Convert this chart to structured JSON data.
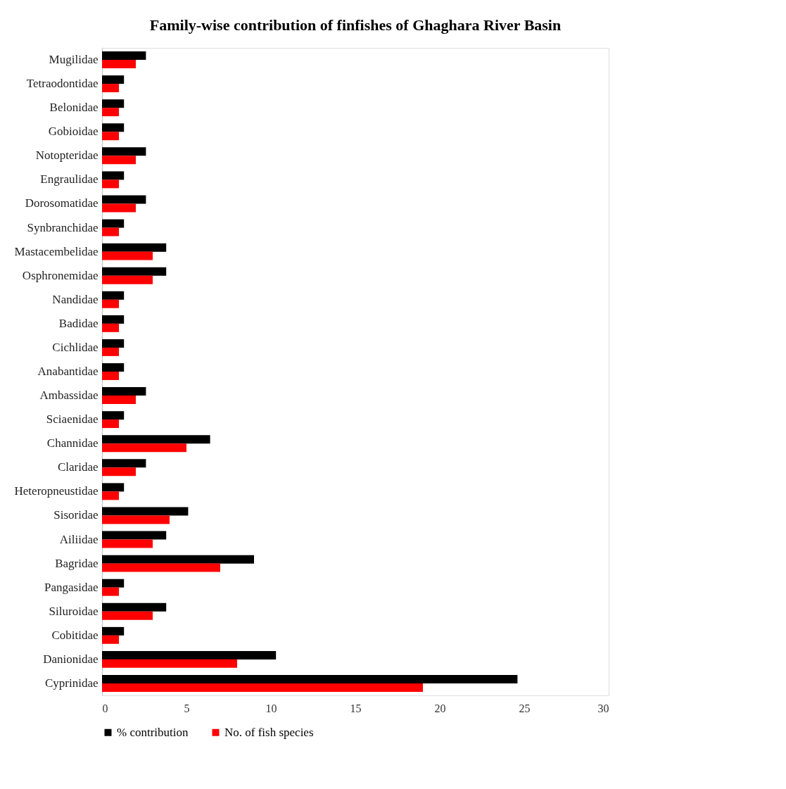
{
  "chart_data": {
    "type": "bar",
    "orientation": "horizontal",
    "title": "Family-wise contribution of finfishes of Ghaghara River Basin",
    "categories": [
      "Mugilidae",
      "Tetraodontidae",
      "Belonidae",
      "Gobioidae",
      "Notopteridae",
      "Engraulidae",
      "Dorosomatidae",
      "Synbranchidae",
      "Mastacembelidae",
      "Osphronemidae",
      "Nandidae",
      "Badidae",
      "Cichlidae",
      "Anabantidae",
      "Ambassidae",
      "Sciaenidae",
      "Channidae",
      "Claridae",
      "Heteropneustidae",
      "Sisoridae",
      "Ailiidae",
      "Bagridae",
      "Pangasidae",
      "Siluroidae",
      "Cobitidae",
      "Danionidae",
      "Cyprinidae"
    ],
    "series": [
      {
        "name": "% contribution",
        "color": "#000000",
        "values": [
          2.6,
          1.3,
          1.3,
          1.3,
          2.6,
          1.3,
          2.6,
          1.3,
          3.8,
          3.8,
          1.3,
          1.3,
          1.3,
          1.3,
          2.6,
          1.3,
          6.4,
          2.6,
          1.3,
          5.1,
          3.8,
          9.0,
          1.3,
          3.8,
          1.3,
          10.3,
          24.6
        ]
      },
      {
        "name": "No. of fish species",
        "color": "#ff0000",
        "values": [
          2,
          1,
          1,
          1,
          2,
          1,
          2,
          1,
          3,
          3,
          1,
          1,
          1,
          1,
          2,
          1,
          5,
          2,
          1,
          4,
          3,
          7,
          1,
          3,
          1,
          8,
          19
        ]
      }
    ],
    "xlim": [
      0,
      30
    ],
    "xticks": [
      0,
      5,
      10,
      15,
      20,
      25,
      30
    ],
    "grid": false,
    "legend": "bottom"
  }
}
